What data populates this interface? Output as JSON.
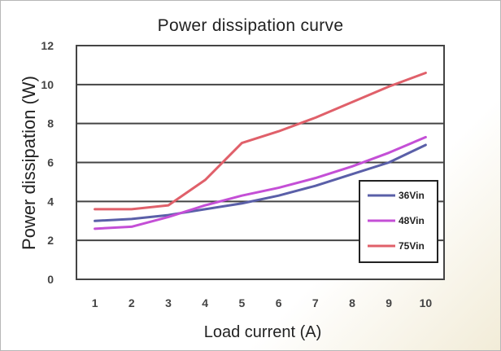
{
  "chart_data": {
    "type": "line",
    "title": "Power dissipation curve",
    "xlabel": "Load current (A)",
    "ylabel": "Power dissipation (W)",
    "x": [
      1,
      2,
      3,
      4,
      5,
      6,
      7,
      8,
      9,
      10
    ],
    "xlim": [
      0.5,
      10.5
    ],
    "ylim": [
      0,
      12
    ],
    "yticks": [
      0,
      2,
      4,
      6,
      8,
      10,
      12
    ],
    "grid": "horizontal",
    "legend_position": "bottom-right",
    "series": [
      {
        "name": "36Vin",
        "color": "#5a5fa8",
        "values": [
          3.0,
          3.1,
          3.3,
          3.6,
          3.9,
          4.3,
          4.8,
          5.4,
          6.0,
          6.9
        ]
      },
      {
        "name": "48Vin",
        "color": "#c44fd6",
        "values": [
          2.6,
          2.7,
          3.2,
          3.8,
          4.3,
          4.7,
          5.2,
          5.8,
          6.5,
          7.3
        ]
      },
      {
        "name": "75Vin",
        "color": "#e0606a",
        "values": [
          3.6,
          3.6,
          3.8,
          5.1,
          7.0,
          7.6,
          8.3,
          9.1,
          9.9,
          10.6
        ]
      }
    ]
  }
}
